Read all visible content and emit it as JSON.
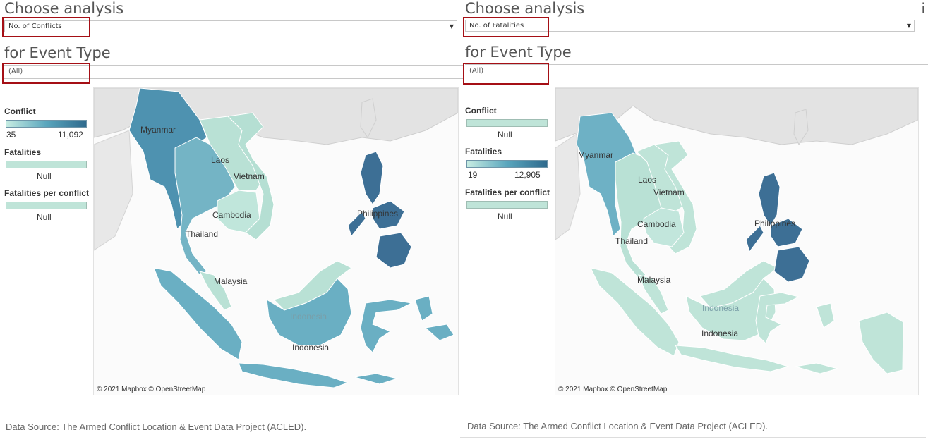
{
  "panels": [
    {
      "id": "left",
      "heading_analysis": "Choose analysis",
      "analysis_value": "No. of Conflicts",
      "heading_event": "for Event Type",
      "event_value": "(All)",
      "legend": {
        "conflict_title": "Conflict",
        "conflict_min": "35",
        "conflict_max": "11,092",
        "fatalities_title": "Fatalities",
        "fatalities_value": "Null",
        "fpc_title": "Fatalities per conflict",
        "fpc_value": "Null"
      },
      "map_labels": [
        "Myanmar",
        "Laos",
        "Vietnam",
        "Cambodia",
        "Thailand",
        "Philippines",
        "Malaysia",
        "Indonesia",
        "Indonesia"
      ],
      "attribution": "© 2021 Mapbox © OpenStreetMap",
      "source": "Data Source: The Armed Conflict Location & Event Data Project (ACLED)."
    },
    {
      "id": "right",
      "heading_analysis": "Choose analysis",
      "analysis_value": "No. of Fatalities",
      "heading_event": "for Event Type",
      "event_value": "(All)",
      "legend": {
        "conflict_title": "Conflict",
        "conflict_value": "Null",
        "fatalities_title": "Fatalities",
        "fatalities_min": "19",
        "fatalities_max": "12,905",
        "fpc_title": "Fatalities per conflict",
        "fpc_value": "Null"
      },
      "map_labels": [
        "Myanmar",
        "Laos",
        "Vietnam",
        "Cambodia",
        "Thailand",
        "Philippines",
        "Malaysia",
        "Indonesia",
        "Indonesia"
      ],
      "attribution": "© 2021 Mapbox © OpenStreetMap",
      "source": "Data Source: The Armed Conflict Location & Event Data Project (ACLED)."
    }
  ],
  "corner_glyph": "i",
  "colors": {
    "highlight": "#a50f15",
    "null_fill": "#bfe4d8",
    "scale_low": "#c6ece2",
    "scale_mid": "#5aa6bd",
    "scale_high": "#2f6a8d",
    "land_background": "#e6e6e6"
  },
  "map_fill_levels": {
    "left": {
      "Myanmar": "high",
      "Laos": "low",
      "Vietnam": "low",
      "Cambodia": "low",
      "Thailand": "mid",
      "Philippines": "highest",
      "Malaysia": "low",
      "Indonesia": "mid"
    },
    "right": {
      "Myanmar": "mid",
      "Laos": "low",
      "Vietnam": "low",
      "Cambodia": "low",
      "Thailand": "low",
      "Philippines": "highest",
      "Malaysia": "low",
      "Indonesia": "low"
    }
  }
}
